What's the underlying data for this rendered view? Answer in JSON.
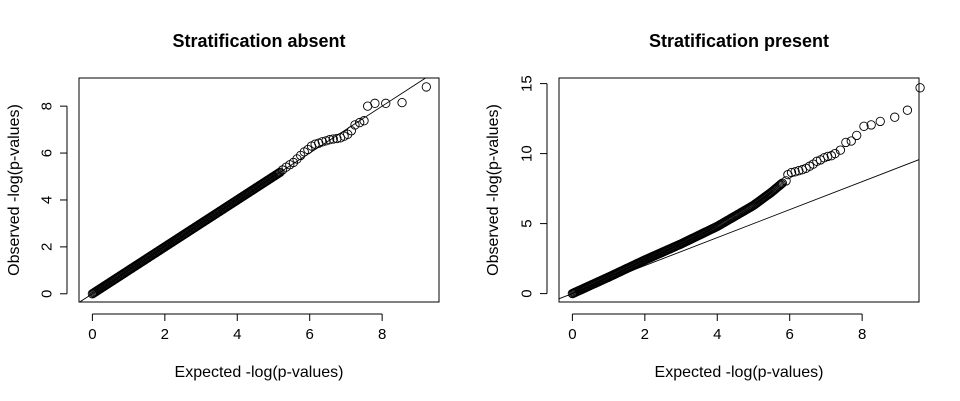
{
  "chart_data": [
    {
      "type": "scatter",
      "title": "Stratification absent",
      "xlabel": "Expected -log(p-values)",
      "ylabel": "Observed -log(p-values)",
      "xlim": [
        -0.37,
        9.57
      ],
      "ylim": [
        -0.35,
        9.2
      ],
      "xticks": [
        0,
        2,
        4,
        6,
        8
      ],
      "yticks": [
        0,
        2,
        4,
        6,
        8
      ],
      "reference_line": {
        "intercept": 0,
        "slope": 1
      },
      "qq_body": [
        [
          0,
          0
        ],
        [
          5.2,
          5.2
        ]
      ],
      "points": [
        [
          5.25,
          5.28
        ],
        [
          5.35,
          5.4
        ],
        [
          5.45,
          5.5
        ],
        [
          5.55,
          5.6
        ],
        [
          5.65,
          5.75
        ],
        [
          5.75,
          5.9
        ],
        [
          5.85,
          6.05
        ],
        [
          5.95,
          6.15
        ],
        [
          6.05,
          6.3
        ],
        [
          6.15,
          6.38
        ],
        [
          6.25,
          6.42
        ],
        [
          6.35,
          6.48
        ],
        [
          6.45,
          6.52
        ],
        [
          6.55,
          6.57
        ],
        [
          6.65,
          6.6
        ],
        [
          6.75,
          6.62
        ],
        [
          6.85,
          6.65
        ],
        [
          6.95,
          6.72
        ],
        [
          7.05,
          6.8
        ],
        [
          7.15,
          6.95
        ],
        [
          7.25,
          7.2
        ],
        [
          7.38,
          7.3
        ],
        [
          7.5,
          7.38
        ],
        [
          7.6,
          8.0
        ],
        [
          7.8,
          8.12
        ],
        [
          8.1,
          8.12
        ],
        [
          8.55,
          8.15
        ],
        [
          9.22,
          8.82
        ]
      ]
    },
    {
      "type": "scatter",
      "title": "Stratification present",
      "xlabel": "Expected -log(p-values)",
      "ylabel": "Observed -log(p-values)",
      "xlim": [
        -0.37,
        9.57
      ],
      "ylim": [
        -0.6,
        15.4
      ],
      "xticks": [
        0,
        2,
        4,
        6,
        8
      ],
      "yticks": [
        0,
        5,
        10,
        15
      ],
      "reference_line": {
        "intercept": 0,
        "slope": 1
      },
      "qq_body": [
        [
          0,
          0
        ],
        [
          1,
          1.18
        ],
        [
          2,
          2.4
        ],
        [
          3,
          3.55
        ],
        [
          4,
          4.8
        ],
        [
          4.5,
          5.55
        ],
        [
          5,
          6.3
        ],
        [
          5.5,
          7.25
        ],
        [
          5.8,
          7.9
        ]
      ],
      "points": [
        [
          5.9,
          8.05
        ],
        [
          5.95,
          8.5
        ],
        [
          6.05,
          8.65
        ],
        [
          6.15,
          8.7
        ],
        [
          6.25,
          8.78
        ],
        [
          6.35,
          8.85
        ],
        [
          6.45,
          8.95
        ],
        [
          6.55,
          9.1
        ],
        [
          6.65,
          9.25
        ],
        [
          6.75,
          9.45
        ],
        [
          6.85,
          9.55
        ],
        [
          6.95,
          9.7
        ],
        [
          7.05,
          9.8
        ],
        [
          7.15,
          9.85
        ],
        [
          7.25,
          10.0
        ],
        [
          7.4,
          10.25
        ],
        [
          7.55,
          10.8
        ],
        [
          7.7,
          10.9
        ],
        [
          7.85,
          11.3
        ],
        [
          8.05,
          11.95
        ],
        [
          8.25,
          12.05
        ],
        [
          8.5,
          12.3
        ],
        [
          8.9,
          12.6
        ],
        [
          9.25,
          13.1
        ],
        [
          9.6,
          14.7
        ]
      ]
    }
  ]
}
